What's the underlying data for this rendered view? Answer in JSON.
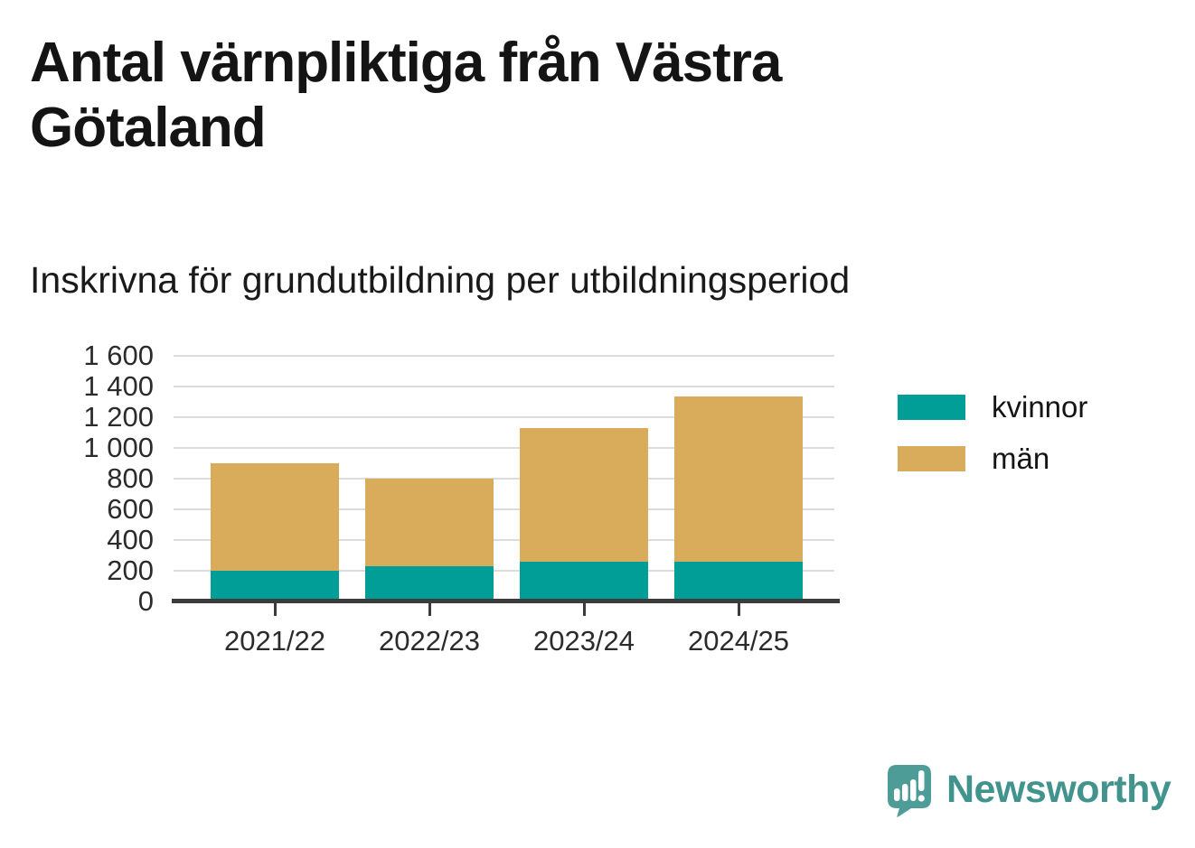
{
  "title": "Antal värnpliktiga från Västra Götaland",
  "subtitle": "Inskrivna för grundutbildning per utbildningsperiod",
  "chart_data": {
    "type": "bar",
    "stacked": true,
    "title": "Antal värnpliktiga från Västra Götaland",
    "subtitle": "Inskrivna för grundutbildning per utbildningsperiod",
    "categories": [
      "2021/22",
      "2022/23",
      "2023/24",
      "2024/25"
    ],
    "series": [
      {
        "name": "kvinnor",
        "color": "#009e96",
        "values": [
          180,
          210,
          240,
          240
        ]
      },
      {
        "name": "män",
        "color": "#d9ac5b",
        "values": [
          700,
          570,
          870,
          1080
        ]
      }
    ],
    "totals": [
      880,
      780,
      1110,
      1320
    ],
    "xlabel": "",
    "ylabel": "",
    "ylim": [
      0,
      1600
    ],
    "ytick_interval": 200,
    "ytick_labels": [
      "0",
      "200",
      "400",
      "600",
      "800",
      "1 000",
      "1 200",
      "1 400",
      "1 600"
    ],
    "grid": true,
    "legend_position": "right"
  },
  "legend": {
    "items": [
      {
        "label": "kvinnor",
        "color": "#009e96"
      },
      {
        "label": "män",
        "color": "#d9ac5b"
      }
    ]
  },
  "branding": {
    "logo_text": "Newsworthy",
    "logo_icon": "bar-chart-speech-bubble-icon",
    "logo_color": "#4e9c98",
    "text_color": "#42938e"
  },
  "colors": {
    "kvinnor": "#009e96",
    "man": "#d9ac5b",
    "axis": "#3b3b3b",
    "gridline": "#dcdcdc",
    "text": "#141414"
  }
}
